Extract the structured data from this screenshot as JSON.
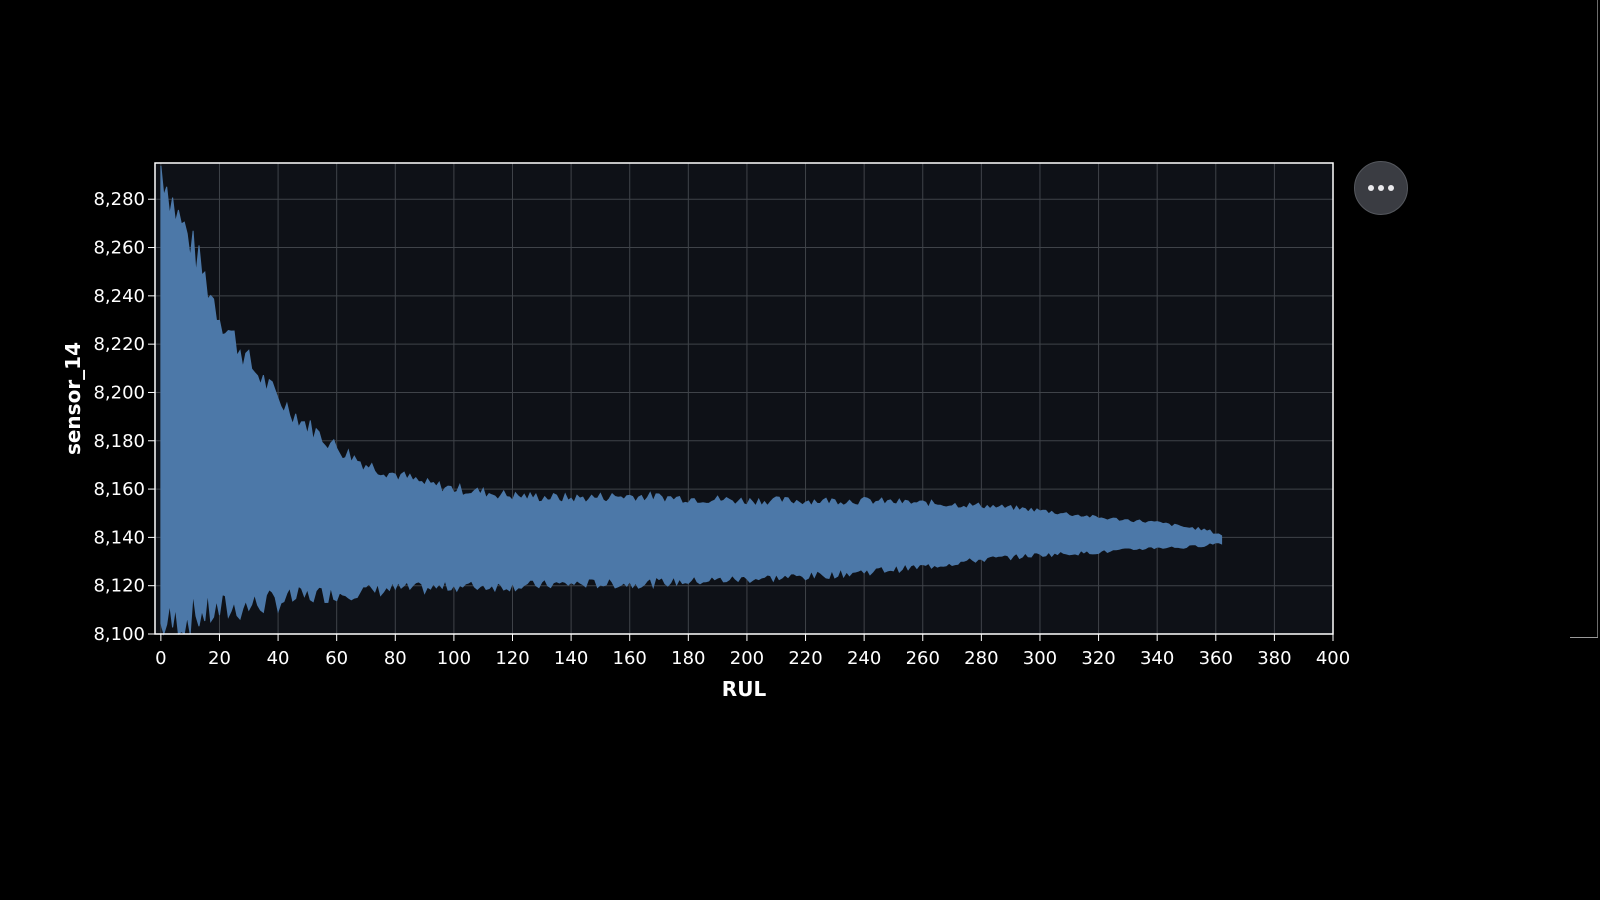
{
  "chart_data": {
    "type": "area",
    "title": "",
    "xlabel": "RUL",
    "ylabel": "sensor_14",
    "xlim": [
      -2,
      400
    ],
    "ylim": [
      8100,
      8295
    ],
    "grid": true,
    "x_ticks": [
      0,
      20,
      40,
      60,
      80,
      100,
      120,
      140,
      160,
      180,
      200,
      220,
      240,
      260,
      280,
      300,
      320,
      340,
      360,
      380,
      400
    ],
    "y_ticks": [
      8100,
      8120,
      8140,
      8160,
      8180,
      8200,
      8220,
      8240,
      8260,
      8280
    ],
    "y_tick_labels": [
      "8,100",
      "8,120",
      "8,140",
      "8,160",
      "8,180",
      "8,200",
      "8,220",
      "8,240",
      "8,260",
      "8,280"
    ],
    "series": [
      {
        "x": [
          0,
          5,
          10,
          20,
          30,
          40,
          50,
          60,
          70,
          80,
          90,
          100,
          120,
          140,
          160,
          180,
          200,
          220,
          240,
          260,
          280,
          300,
          320,
          330,
          340,
          350,
          356,
          362
        ],
        "upper": [
          8294,
          8275,
          8262,
          8232,
          8212,
          8197,
          8186,
          8177,
          8170,
          8166,
          8162,
          8160,
          8157,
          8156,
          8157,
          8156,
          8155,
          8155,
          8155,
          8154,
          8153,
          8151,
          8148,
          8147,
          8146,
          8144,
          8143,
          8141
        ],
        "lower": [
          8103,
          8105,
          8108,
          8110,
          8112,
          8114,
          8116,
          8117,
          8118,
          8119,
          8119,
          8120,
          8120,
          8121,
          8121,
          8122,
          8123,
          8124,
          8126,
          8128,
          8131,
          8133,
          8134,
          8135,
          8136,
          8136,
          8137,
          8138
        ]
      }
    ],
    "colors": {
      "fill": "#4c78a8",
      "plot_background": "#0e1117",
      "grid": "#3f4349",
      "axis": "#ffffff"
    }
  },
  "toolbar": {
    "menu_icon": "more-horizontal-icon"
  }
}
